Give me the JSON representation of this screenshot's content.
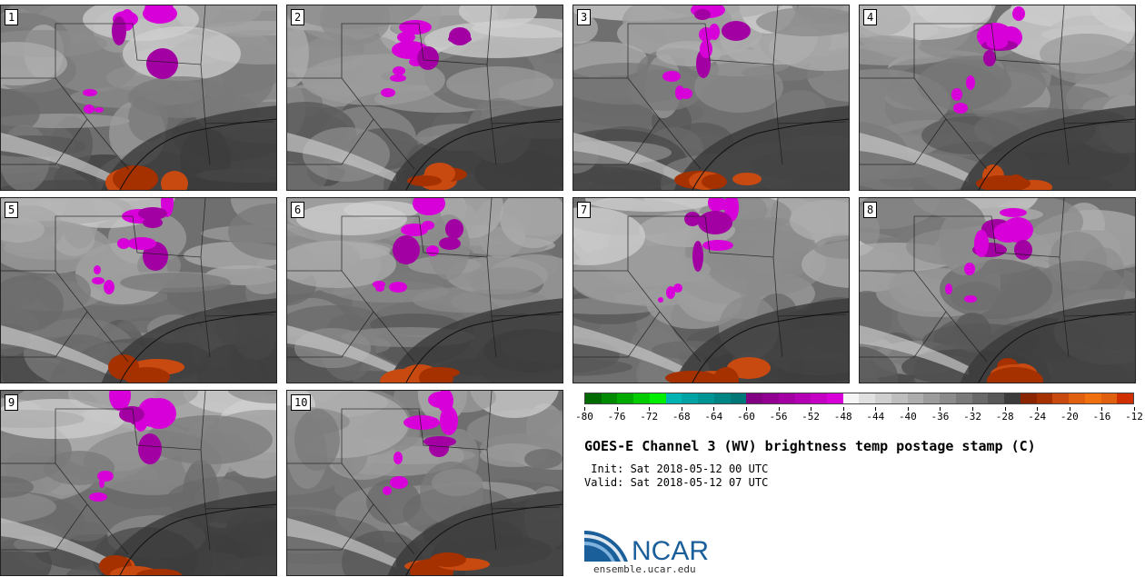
{
  "panels": [
    {
      "label": "1"
    },
    {
      "label": "2"
    },
    {
      "label": "3"
    },
    {
      "label": "4"
    },
    {
      "label": "5"
    },
    {
      "label": "6"
    },
    {
      "label": "7"
    },
    {
      "label": "8"
    },
    {
      "label": "9"
    },
    {
      "label": "10"
    }
  ],
  "colorbar": {
    "colors": [
      "#006a00",
      "#008a00",
      "#00aa00",
      "#00cc00",
      "#00ee00",
      "#00b3b3",
      "#00a3a3",
      "#009494",
      "#008585",
      "#007777",
      "#820082",
      "#920092",
      "#a300a3",
      "#b400b4",
      "#c500c5",
      "#d800d8",
      "#f5f5f5",
      "#e0e0e0",
      "#cfcfcf",
      "#bebebe",
      "#adadad",
      "#9c9c9c",
      "#8b8b8b",
      "#7a7a7a",
      "#696969",
      "#585858",
      "#3c3c3c",
      "#8b2500",
      "#a53000",
      "#c84a10",
      "#e06010",
      "#f07010",
      "#e06010",
      "#d03000"
    ],
    "ticks": [
      "-80",
      "-76",
      "-72",
      "-68",
      "-64",
      "-60",
      "-56",
      "-52",
      "-48",
      "-44",
      "-40",
      "-36",
      "-32",
      "-28",
      "-24",
      "-20",
      "-16",
      "-12"
    ]
  },
  "title": "GOES-E Channel 3 (WV) brightness temp postage stamp (C)",
  "init": " Init: Sat 2018-05-12 00 UTC",
  "valid": "Valid: Sat 2018-05-12 07 UTC",
  "logo_text": "NCAR",
  "site": "ensemble.ucar.edu"
}
